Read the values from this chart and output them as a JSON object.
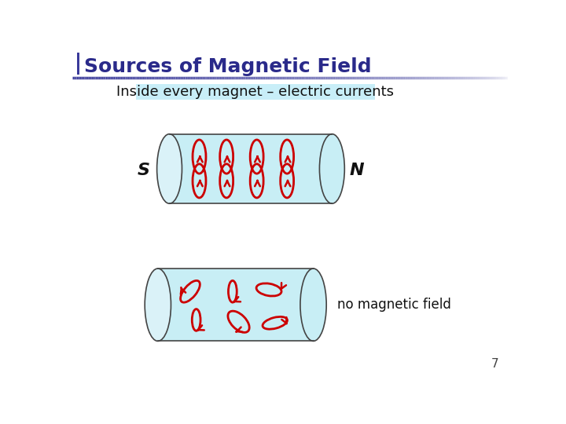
{
  "title": "Sources of Magnetic Field",
  "subtitle": "Inside every magnet – electric currents",
  "subtitle_bg": "#c8eef8",
  "title_color": "#2a2a8a",
  "title_bar_color": "#3a3a9a",
  "cylinder_fill": "#c8eef5",
  "cylinder_edge": "#444444",
  "arrow_color": "#cc0000",
  "label_S": "S",
  "label_N": "N",
  "label_no_field": "no magnetic field",
  "page_number": "7",
  "bg_color": "#ffffff"
}
